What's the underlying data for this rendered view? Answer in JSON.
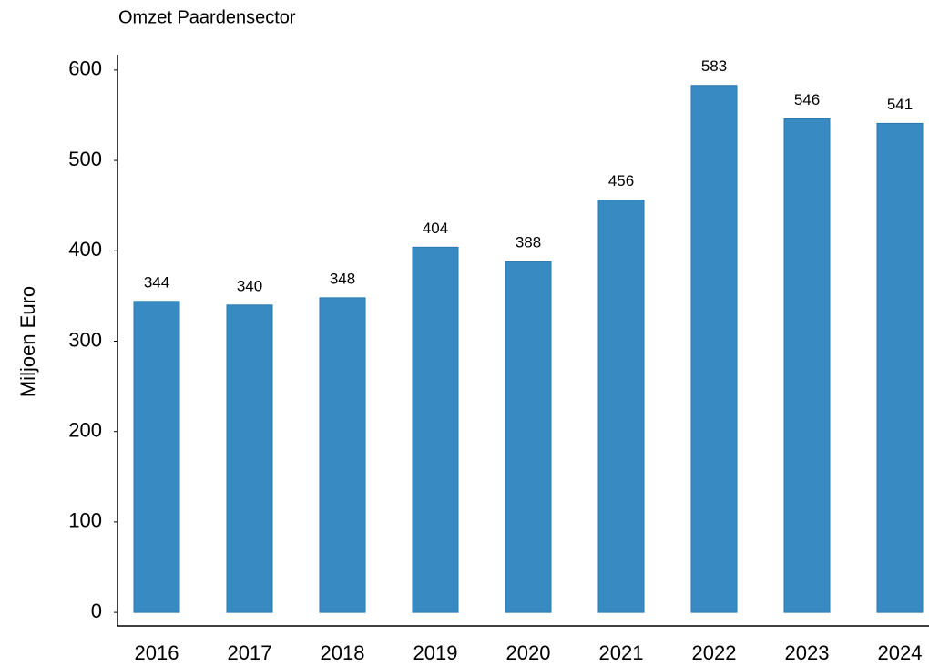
{
  "chart_data": {
    "type": "bar",
    "title": "Omzet Paardensector",
    "y_label": "Miljoen Euro",
    "categories": [
      "2016",
      "2017",
      "2018",
      "2019",
      "2020",
      "2021",
      "2022",
      "2023",
      "2024"
    ],
    "values": [
      344,
      340,
      348,
      404,
      388,
      456,
      583,
      546,
      541
    ],
    "color": "#378bc2",
    "ylim": [
      -15,
      617
    ],
    "yticks": [
      0,
      100,
      200,
      300,
      400,
      500,
      600
    ],
    "grid": false
  }
}
